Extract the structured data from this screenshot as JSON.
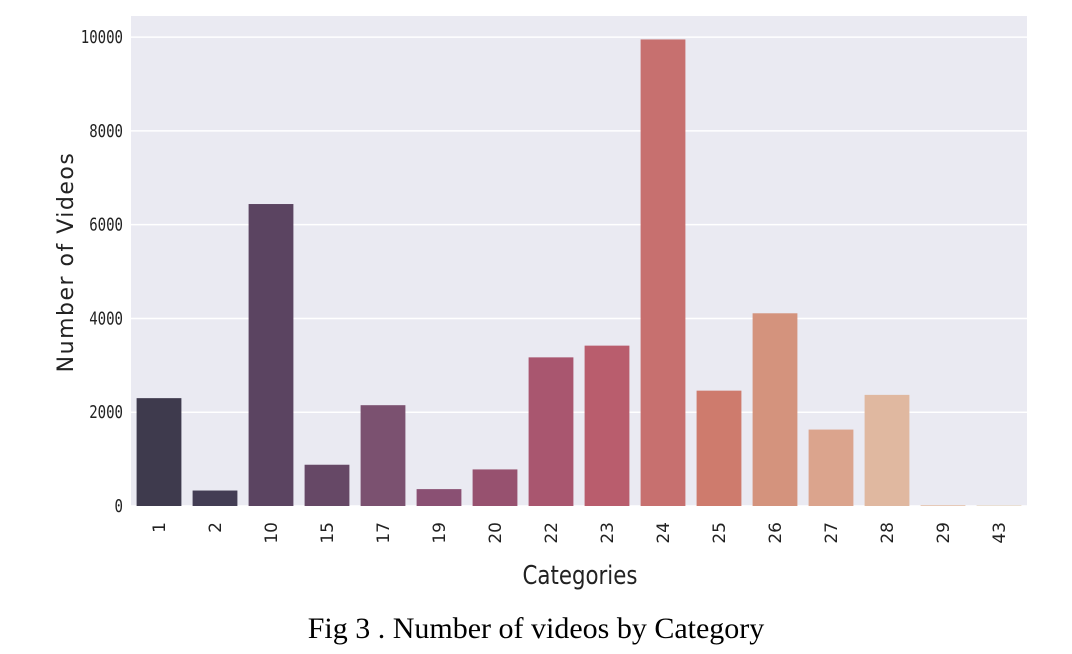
{
  "chart_data": {
    "type": "bar",
    "title": "",
    "xlabel": "Categories",
    "ylabel": "Number of Videos",
    "categories": [
      "1",
      "2",
      "10",
      "15",
      "17",
      "19",
      "20",
      "22",
      "23",
      "24",
      "25",
      "26",
      "27",
      "28",
      "29",
      "43"
    ],
    "values": [
      2300,
      330,
      6440,
      880,
      2150,
      360,
      780,
      3170,
      3420,
      9950,
      2460,
      4110,
      1630,
      2370,
      20,
      20
    ],
    "colors": [
      "#3e3a4d",
      "#433d54",
      "#5b4461",
      "#664866",
      "#7b5170",
      "#8a5073",
      "#97516f",
      "#a9566f",
      "#b95d6d",
      "#c7706f",
      "#ce7b6d",
      "#d4937d",
      "#dba48d",
      "#e0b8a0",
      "#e6c8b4",
      "#eaded1"
    ],
    "ylim": [
      0,
      10450
    ],
    "yticks": [
      0,
      2000,
      4000,
      6000,
      8000,
      10000
    ],
    "grid": true,
    "legend": "none"
  },
  "caption": "Fig 3 . Number of videos by Category"
}
